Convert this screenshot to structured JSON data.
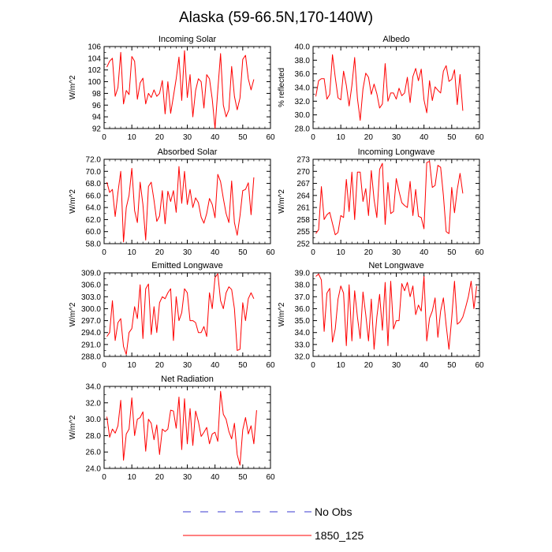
{
  "figure": {
    "title": "Alaska (59-66.5N,170-140W)",
    "legend": [
      {
        "label": "No Obs",
        "style": "dashed",
        "color": "#3a3ad0"
      },
      {
        "label": "1850_125",
        "style": "solid",
        "color": "#ff0000"
      }
    ]
  },
  "chart_data": [
    {
      "type": "line",
      "title": "Incoming Solar",
      "ylabel": "W/m^2",
      "xlabel": "",
      "xlim": [
        0,
        60
      ],
      "ylim": [
        92,
        106
      ],
      "xticks": [
        0,
        10,
        20,
        30,
        40,
        50,
        60
      ],
      "yticks": [
        92,
        94,
        96,
        98,
        100,
        102,
        104,
        106
      ],
      "yticklabels": [
        "92",
        "94",
        "96",
        "98",
        "100",
        "102",
        "104",
        "106"
      ],
      "series": [
        {
          "name": "1850_125",
          "color": "#ff0000",
          "values": [
            102.5,
            103.5,
            104,
            97.5,
            99,
            105,
            96.2,
            98.5,
            97.8,
            104.3,
            103.5,
            97,
            99.8,
            100.6,
            96.2,
            98,
            97.3,
            98.6,
            97.5,
            98,
            100.2,
            94.5,
            100,
            94.6,
            97.5,
            100.5,
            104.2,
            96.8,
            105.3,
            97.3,
            101.2,
            94,
            98.5,
            100.5,
            100,
            95.5,
            101.2,
            100.5,
            97,
            92,
            98.5,
            104.8,
            96,
            94,
            95.2,
            102.6,
            97.5,
            95.2,
            97.2,
            103.8,
            104.5,
            100.5,
            98.6,
            100.4
          ]
        }
      ]
    },
    {
      "type": "line",
      "title": "Albedo",
      "ylabel": "% reflected",
      "xlabel": "",
      "xlim": [
        0,
        60
      ],
      "ylim": [
        28,
        40
      ],
      "xticks": [
        0,
        10,
        20,
        30,
        40,
        50,
        60
      ],
      "yticks": [
        28,
        30,
        32,
        34,
        36,
        38,
        40
      ],
      "yticklabels": [
        "28.0",
        "30.0",
        "32.0",
        "34.0",
        "36.0",
        "38.0",
        "40.0"
      ],
      "series": [
        {
          "name": "1850_125",
          "color": "#ff0000",
          "values": [
            32.7,
            35,
            35.3,
            35.3,
            32.3,
            33,
            38.8,
            35.5,
            32.5,
            32.2,
            36.4,
            34.3,
            31.3,
            34.3,
            38.4,
            32.4,
            29.2,
            33.8,
            36.1,
            35.5,
            33,
            34.5,
            33.1,
            31,
            31.6,
            37.5,
            32,
            33.2,
            33.2,
            32.3,
            33.9,
            32.8,
            33.2,
            35.5,
            31.8,
            35.6,
            36.8,
            35,
            36.7,
            32.2,
            30.3,
            35,
            32.1,
            34.1,
            33.6,
            33.2,
            36.4,
            37.2,
            34.9,
            35.2,
            36.6,
            31.5,
            35.9,
            30.6
          ]
        }
      ]
    },
    {
      "type": "line",
      "title": "Absorbed Solar",
      "ylabel": "W/m^2",
      "xlabel": "",
      "xlim": [
        0,
        60
      ],
      "ylim": [
        58,
        72
      ],
      "xticks": [
        0,
        10,
        20,
        30,
        40,
        50,
        60
      ],
      "yticks": [
        58,
        60,
        62,
        64,
        66,
        68,
        70,
        72
      ],
      "yticklabels": [
        "58.0",
        "60.0",
        "62.0",
        "64.0",
        "66.0",
        "68.0",
        "70.0",
        "72.0"
      ],
      "series": [
        {
          "name": "1850_125",
          "color": "#ff0000",
          "values": [
            68.2,
            66.5,
            67,
            62.5,
            66.5,
            70,
            58.3,
            64,
            66,
            70.5,
            63.5,
            61.5,
            68.2,
            64.5,
            58.6,
            67.5,
            68.2,
            65.2,
            61.7,
            62.6,
            66.8,
            61.3,
            66.7,
            65,
            66.8,
            63.2,
            70.8,
            64.7,
            70,
            64.5,
            67,
            64,
            65.6,
            64.8,
            62.4,
            61.4,
            63,
            65.5,
            64.5,
            62.3,
            69.5,
            68.3,
            65.5,
            63,
            61.5,
            68.4,
            61.5,
            59.4,
            62.6,
            66.8,
            67,
            68.1,
            62.8,
            69
          ]
        }
      ]
    },
    {
      "type": "line",
      "title": "Incoming Longwave",
      "ylabel": "W/m^2",
      "xlabel": "",
      "xlim": [
        0,
        60
      ],
      "ylim": [
        252,
        273
      ],
      "xticks": [
        0,
        10,
        20,
        30,
        40,
        50,
        60
      ],
      "yticks": [
        252,
        255,
        258,
        261,
        264,
        267,
        270,
        273
      ],
      "yticklabels": [
        "252",
        "255",
        "258",
        "261",
        "264",
        "267",
        "270",
        "273"
      ],
      "series": [
        {
          "name": "1850_125",
          "color": "#ff0000",
          "values": [
            254.5,
            255.5,
            266.2,
            258,
            259.2,
            259.8,
            257,
            254.2,
            254.8,
            259,
            258.5,
            268,
            260,
            269.8,
            258,
            269.8,
            269.8,
            262.5,
            265.7,
            259,
            270.2,
            263,
            258.5,
            270.5,
            272,
            256.8,
            267.2,
            259.5,
            260,
            268.2,
            265,
            262.2,
            261.5,
            261,
            267.5,
            259,
            265.5,
            258.8,
            258.5,
            255.7,
            272.2,
            272.5,
            266,
            266.5,
            271.5,
            271,
            264,
            255,
            254.5,
            266,
            259.7,
            265.5,
            269.5,
            264.5
          ]
        }
      ]
    },
    {
      "type": "line",
      "title": "Emitted Longwave",
      "ylabel": "W/m^2",
      "xlabel": "",
      "xlim": [
        0,
        60
      ],
      "ylim": [
        288,
        309
      ],
      "xticks": [
        0,
        10,
        20,
        30,
        40,
        50,
        60
      ],
      "yticks": [
        288,
        291,
        294,
        297,
        300,
        303,
        306,
        309
      ],
      "yticklabels": [
        "288.0",
        "291.0",
        "294.0",
        "297.0",
        "300.0",
        "303.0",
        "306.0",
        "309.0"
      ],
      "series": [
        {
          "name": "1850_125",
          "color": "#ff0000",
          "values": [
            293,
            294,
            302,
            292,
            296.5,
            297.5,
            290.5,
            288.5,
            294,
            295,
            300.5,
            297.5,
            306,
            292.5,
            305,
            306.2,
            293.5,
            300.5,
            294,
            301.5,
            303,
            302.5,
            304,
            305,
            292,
            303,
            297,
            299,
            305,
            304,
            297,
            297,
            296.5,
            294,
            294,
            295.5,
            293,
            304,
            300,
            307.8,
            308.8,
            302,
            300,
            304,
            305.5,
            304.8,
            300,
            289.5,
            289.8,
            301.5,
            297,
            302.5,
            304,
            302.5
          ]
        }
      ]
    },
    {
      "type": "line",
      "title": "Net Longwave",
      "ylabel": "W/m^2",
      "xlabel": "",
      "xlim": [
        0,
        60
      ],
      "ylim": [
        32,
        39
      ],
      "xticks": [
        0,
        10,
        20,
        30,
        40,
        50,
        60
      ],
      "yticks": [
        32,
        33,
        34,
        35,
        36,
        37,
        38,
        39
      ],
      "yticklabels": [
        "32.0",
        "33.0",
        "34.0",
        "35.0",
        "36.0",
        "37.0",
        "38.0",
        "39.0"
      ],
      "series": [
        {
          "name": "1850_125",
          "color": "#ff0000",
          "values": [
            38.7,
            38.9,
            38.4,
            34.1,
            37.3,
            37.7,
            33.2,
            34.3,
            36.8,
            37.9,
            37.3,
            32.9,
            38,
            33.3,
            37.5,
            35.3,
            33.5,
            37.4,
            35.5,
            33.3,
            36.8,
            32.6,
            35.3,
            37.2,
            34.2,
            38.2,
            32.9,
            38.3,
            34.3,
            35,
            35,
            38.1,
            37.5,
            38.2,
            37,
            37.9,
            35.5,
            36.3,
            35.8,
            38.7,
            33.3,
            35.2,
            35.8,
            36.9,
            33.6,
            35.8,
            36.9,
            34.6,
            32.6,
            35.2,
            38.3,
            34.7,
            34.9,
            35.3,
            36.1,
            37,
            38.3,
            36,
            37.9
          ]
        }
      ]
    },
    {
      "type": "line",
      "title": "Net Radiation",
      "ylabel": "W/m^2",
      "xlabel": "",
      "xlim": [
        0,
        60
      ],
      "ylim": [
        24,
        34
      ],
      "xticks": [
        0,
        10,
        20,
        30,
        40,
        50,
        60
      ],
      "yticks": [
        24,
        26,
        28,
        30,
        32,
        34
      ],
      "yticklabels": [
        "24.0",
        "26.0",
        "28.0",
        "30.0",
        "32.0",
        "34.0"
      ],
      "series": [
        {
          "name": "1850_125",
          "color": "#ff0000",
          "values": [
            30.3,
            27.8,
            28.8,
            28.3,
            29.2,
            32.3,
            25,
            28.2,
            28.8,
            32.6,
            28,
            30,
            30.2,
            30.9,
            26.1,
            30,
            29.5,
            27.5,
            29.3,
            25.7,
            28.8,
            28.5,
            28.8,
            31.1,
            31,
            28.9,
            32.7,
            26.3,
            32.5,
            27,
            31.3,
            26.8,
            31,
            29.7,
            27.9,
            28.4,
            29,
            27,
            28.2,
            28.4,
            27.3,
            33.4,
            30.6,
            30,
            28.5,
            27.6,
            29.5,
            25.7,
            24.4,
            28.7,
            30.2,
            28.2,
            29.2,
            27,
            31.1
          ]
        }
      ]
    }
  ]
}
